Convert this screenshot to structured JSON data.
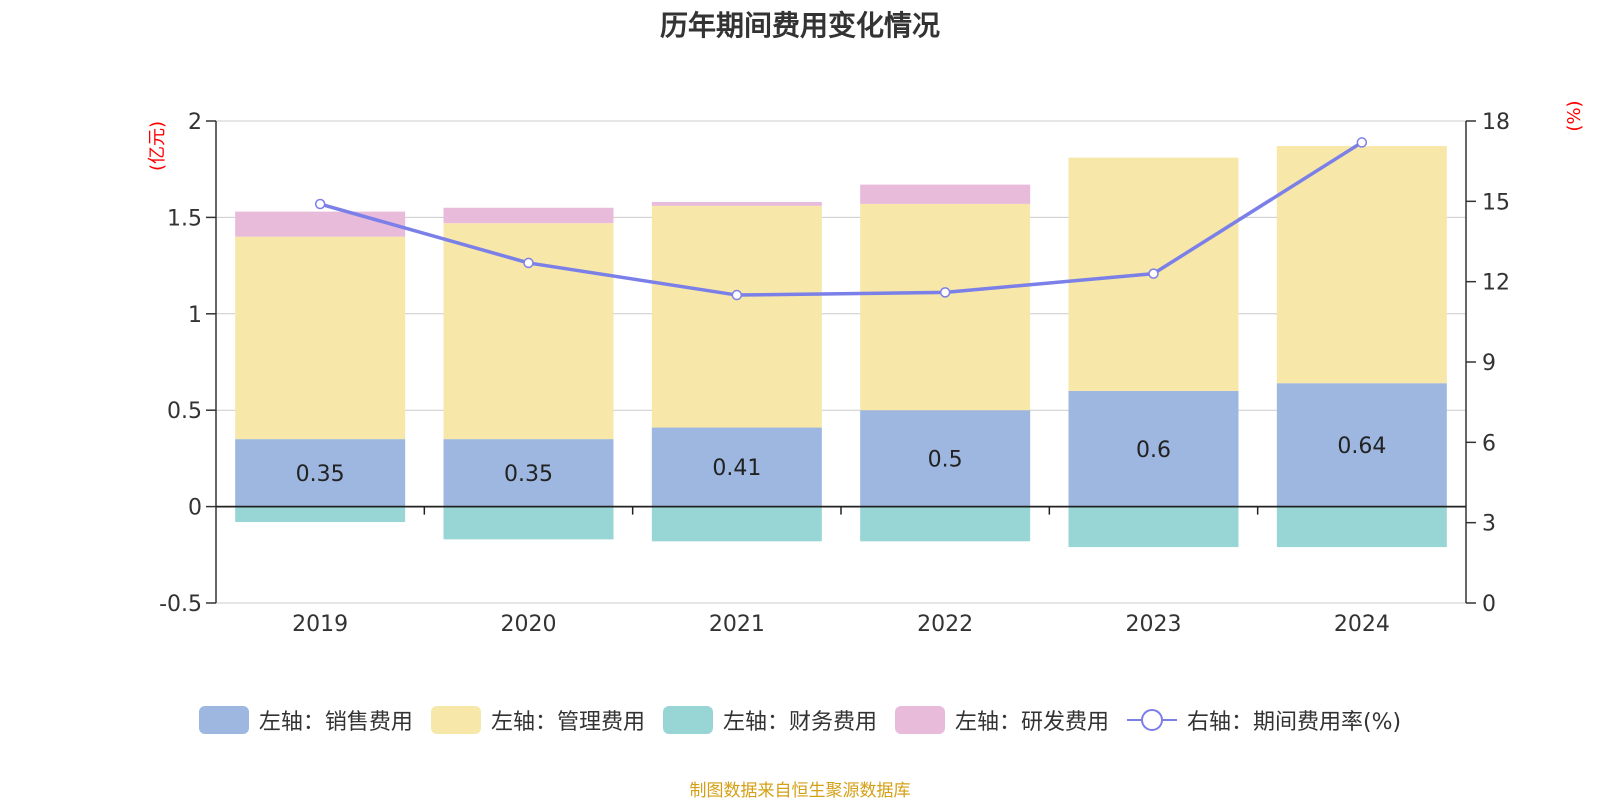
{
  "chart_data": {
    "type": "bar",
    "title": "历年期间费用变化情况",
    "categories": [
      "2019",
      "2020",
      "2021",
      "2022",
      "2023",
      "2024"
    ],
    "left_axis": {
      "unit_label": "(亿元)",
      "ylim": [
        -0.5,
        2
      ],
      "ticks": [
        "2",
        "1.5",
        "1",
        "0.5",
        "0",
        "-0.5"
      ]
    },
    "right_axis": {
      "unit_label": "(%)",
      "ylim": [
        0,
        18
      ],
      "ticks": [
        "18",
        "15",
        "12",
        "9",
        "6",
        "3",
        "0"
      ]
    },
    "series": [
      {
        "name": "左轴：销售费用",
        "axis": "left",
        "stack": true,
        "color": "#9db7e0",
        "values": [
          0.35,
          0.35,
          0.41,
          0.5,
          0.6,
          0.64
        ],
        "data_labels": [
          "0.35",
          "0.35",
          "0.41",
          "0.5",
          "0.6",
          "0.64"
        ]
      },
      {
        "name": "左轴：管理费用",
        "axis": "left",
        "stack": true,
        "color": "#f7e7a9",
        "values": [
          1.05,
          1.12,
          1.15,
          1.07,
          1.21,
          1.23
        ]
      },
      {
        "name": "左轴：财务费用",
        "axis": "left",
        "stack": true,
        "color": "#98d5d5",
        "values": [
          -0.08,
          -0.17,
          -0.18,
          -0.18,
          -0.21,
          -0.21
        ]
      },
      {
        "name": "左轴：研发费用",
        "axis": "left",
        "stack": true,
        "color": "#e8bbdb",
        "values": [
          0.13,
          0.08,
          0.02,
          0.1,
          0,
          0
        ]
      },
      {
        "name": "右轴：期间费用率(%)",
        "axis": "right",
        "type": "line",
        "color": "#7b7fe8",
        "values": [
          14.9,
          12.7,
          11.5,
          11.6,
          12.3,
          17.2
        ]
      }
    ],
    "grid": true,
    "legend_position": "bottom"
  },
  "source_note": "制图数据来自恒生聚源数据库",
  "colors": {
    "title": "#333333",
    "axis_unit": "#ff0000",
    "source_note": "#d4a017",
    "grid": "#cccccc",
    "axis": "#333333"
  }
}
